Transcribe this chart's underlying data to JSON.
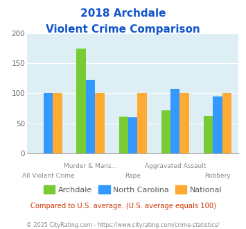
{
  "title_line1": "2018 Archdale",
  "title_line2": "Violent Crime Comparison",
  "archdale": [
    null,
    175,
    61,
    72,
    63
  ],
  "north_carolina": [
    100,
    123,
    60,
    108,
    95
  ],
  "national": [
    100,
    100,
    100,
    100,
    100
  ],
  "archdale_color": "#77cc33",
  "nc_color": "#3399ff",
  "national_color": "#ffaa33",
  "bg_color": "#ddeef5",
  "title_color": "#1155cc",
  "ylim": [
    0,
    200
  ],
  "yticks": [
    0,
    50,
    100,
    150,
    200
  ],
  "subtitle_text": "Compared to U.S. average. (U.S. average equals 100)",
  "subtitle_color": "#cc3300",
  "footer_text": "© 2025 CityRating.com - https://www.cityrating.com/crime-statistics/",
  "footer_color": "#888888",
  "legend_labels": [
    "Archdale",
    "North Carolina",
    "National"
  ],
  "line1_labels": [
    "",
    "Murder & Mans...",
    "",
    "Aggravated Assault",
    ""
  ],
  "line2_labels": [
    "All Violent Crime",
    "",
    "Rape",
    "",
    "Robbery"
  ],
  "bar_width": 0.22,
  "group_positions": [
    0,
    1,
    2,
    3,
    4
  ]
}
